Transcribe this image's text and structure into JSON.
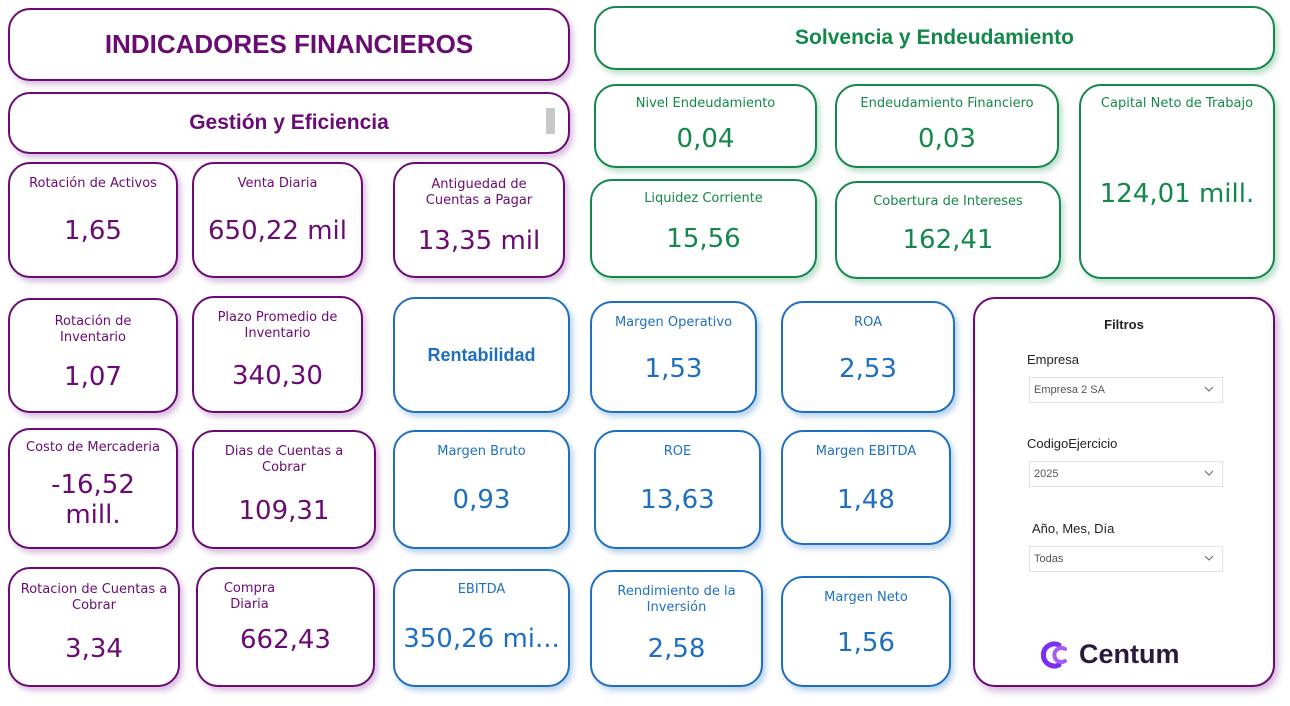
{
  "headers": {
    "main_title": "INDICADORES FINANCIEROS",
    "gestion": "Gestión y Eficiencia",
    "solvencia": "Solvencia y Endeudamiento",
    "rentabilidad": "Rentabilidad"
  },
  "gestion_cards": [
    {
      "label": "Rotación de Activos",
      "value": "1,65"
    },
    {
      "label": "Venta Diaria",
      "value": "650,22 mil"
    },
    {
      "label": "Antiguedad de Cuentas a Pagar",
      "value": "13,35 mil"
    },
    {
      "label": "Rotación de Inventario",
      "value": "1,07"
    },
    {
      "label": "Plazo Promedio de Inventario",
      "value": "340,30"
    },
    {
      "label": "Costo de Mercaderia",
      "value": "-16,52 mill."
    },
    {
      "label": "Dias de Cuentas a Cobrar",
      "value": "109,31"
    },
    {
      "label": "Rotacion de Cuentas a Cobrar",
      "value": "3,34"
    },
    {
      "label": "Compra Diaria",
      "value": "662,43"
    }
  ],
  "solvencia_cards": [
    {
      "label": "Nivel Endeudamiento",
      "value": "0,04"
    },
    {
      "label": "Endeudamiento Financiero",
      "value": "0,03"
    },
    {
      "label": "Capital Neto de Trabajo",
      "value": "124,01 mill."
    },
    {
      "label": "Liquidez Corriente",
      "value": "15,56"
    },
    {
      "label": "Cobertura de Intereses",
      "value": "162,41"
    }
  ],
  "rentabilidad_cards": [
    {
      "label": "Margen Operativo",
      "value": "1,53"
    },
    {
      "label": "ROA",
      "value": "2,53"
    },
    {
      "label": "Margen Bruto",
      "value": "0,93"
    },
    {
      "label": "ROE",
      "value": "13,63"
    },
    {
      "label": "Margen EBITDA",
      "value": "1,48"
    },
    {
      "label": "EBITDA",
      "value": "350,26 mi..."
    },
    {
      "label": "Rendimiento de la Inversión",
      "value": "2,58"
    },
    {
      "label": "Margen Neto",
      "value": "1,56"
    }
  ],
  "filters": {
    "title": "Filtros",
    "empresa_label": "Empresa",
    "empresa_value": "Empresa 2 SA",
    "codigo_label": "CodigoEjercicio",
    "codigo_value": "2025",
    "fecha_label": "Año, Mes, Día",
    "fecha_value": "Todas"
  },
  "brand": {
    "name": "Centum",
    "icon": "centum-logo-icon"
  },
  "colors": {
    "purple": "#6a0b73",
    "green": "#14884a",
    "blue": "#1f6fc0"
  }
}
